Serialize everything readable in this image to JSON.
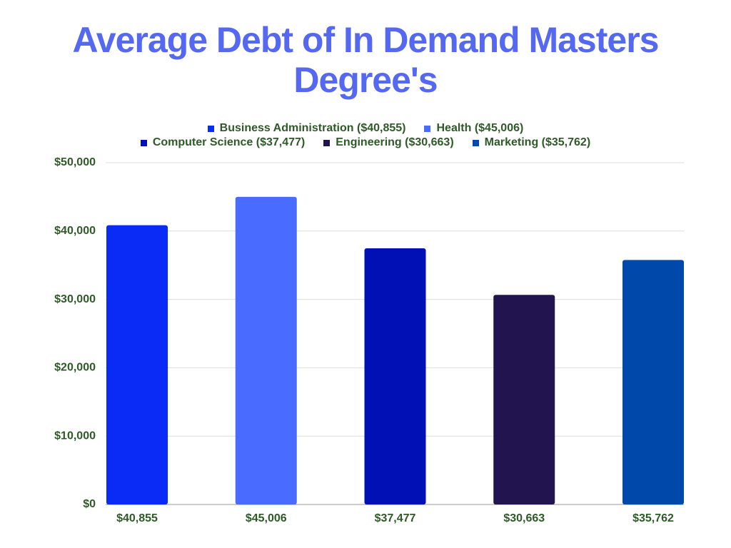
{
  "chart_data": {
    "type": "bar",
    "title": "Average Debt of In Demand Masters Degree's",
    "categories": [
      "Business Administration ($40,855)",
      "Health ($45,006)",
      "Computer Science ($37,477)",
      "Engineering ($30,663)",
      "Marketing ($35,762)"
    ],
    "values": [
      40855,
      45006,
      37477,
      30663,
      35762
    ],
    "value_labels": [
      "$40,855",
      "$45,006",
      "$37,477",
      "$30,663",
      "$35,762"
    ],
    "colors": [
      "#0a2af5",
      "#4a6bff",
      "#0010b5",
      "#22154f",
      "#0049ab"
    ],
    "ylim": [
      0,
      50000
    ],
    "yticks": [
      {
        "value": 0,
        "label": "$0"
      },
      {
        "value": 10000,
        "label": "$10,000"
      },
      {
        "value": 20000,
        "label": "$20,000"
      },
      {
        "value": 30000,
        "label": "$30,000"
      },
      {
        "value": 40000,
        "label": "$40,000"
      },
      {
        "value": 50000,
        "label": "$50,000"
      }
    ],
    "grid": true
  }
}
